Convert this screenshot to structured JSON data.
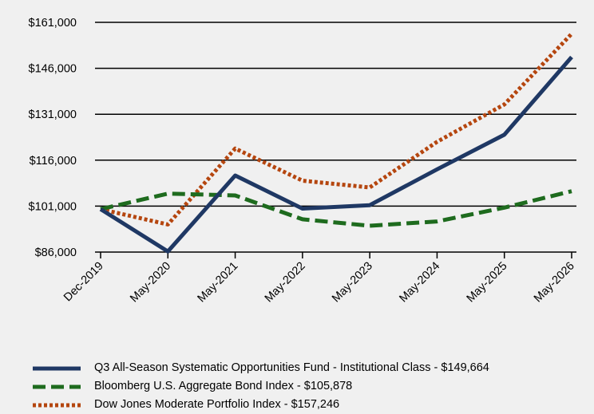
{
  "chart_data": {
    "type": "line",
    "categories": [
      "Dec-2019",
      "May-2020",
      "May-2021",
      "May-2022",
      "May-2023",
      "May-2024",
      "May-2025",
      "May-2026"
    ],
    "y_ticks": [
      "$86,000",
      "$101,000",
      "$116,000",
      "$131,000",
      "$146,000",
      "$161,000"
    ],
    "ylim": [
      86000,
      161000
    ],
    "grid": "horizontal",
    "legend_position": "bottom",
    "series": [
      {
        "name": "Q3 All-Season Systematic Opportunities Fund - Institutional Class - $149,664",
        "color": "#1f3864",
        "style": "solid",
        "values": [
          100000,
          86200,
          111000,
          100200,
          101300,
          113000,
          124300,
          149664
        ]
      },
      {
        "name": "Bloomberg U.S. Aggregate Bond Index - $105,878",
        "color": "#1e6b1e",
        "style": "dashed",
        "values": [
          100000,
          105100,
          104500,
          96700,
          94600,
          96000,
          100500,
          105878
        ]
      },
      {
        "name": "Dow Jones Moderate Portfolio Index - $157,246",
        "color": "#b5460f",
        "style": "dotted",
        "values": [
          100000,
          95000,
          119800,
          109300,
          107100,
          122000,
          134200,
          157246
        ]
      }
    ]
  }
}
